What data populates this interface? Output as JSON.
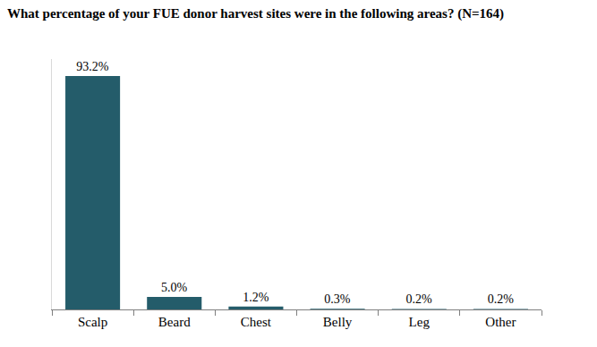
{
  "chart_data": {
    "type": "bar",
    "title": "What percentage of your FUE donor harvest sites were in the following areas? (N=164)",
    "categories": [
      "Scalp",
      "Beard",
      "Chest",
      "Belly",
      "Leg",
      "Other"
    ],
    "values": [
      93.2,
      5.0,
      1.2,
      0.3,
      0.2,
      0.2
    ],
    "value_labels": [
      "93.2%",
      "5.0%",
      "1.2%",
      "0.3%",
      "0.2%",
      "0.2%"
    ],
    "color": "#245c6a",
    "ylim": [
      0,
      100
    ],
    "grid": false,
    "data_labels": true,
    "tick_labels": "x"
  }
}
